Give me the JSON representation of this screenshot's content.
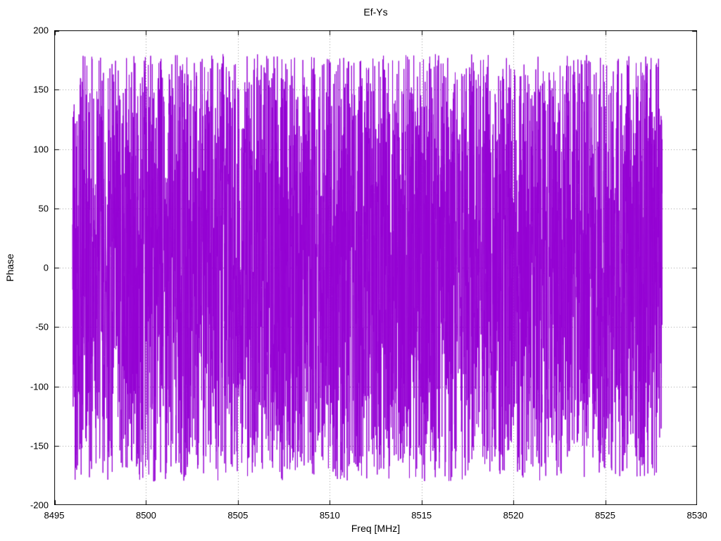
{
  "chart_data": {
    "type": "line",
    "title": "Ef-Ys",
    "xlabel": "Freq [MHz]",
    "ylabel": "Phase",
    "xlim": [
      8495,
      8530
    ],
    "ylim": [
      -200,
      200
    ],
    "x_ticks": [
      8495,
      8500,
      8505,
      8510,
      8515,
      8520,
      8525,
      8530
    ],
    "y_ticks": [
      -200,
      -150,
      -100,
      -50,
      0,
      50,
      100,
      150,
      200
    ],
    "grid": "dotted",
    "legend": "none",
    "series": [
      {
        "name": "Ef-Ys",
        "color": "#9400d3",
        "style": "lines",
        "x_start": 8496.0,
        "x_end": 8528.1,
        "n_points": 4200,
        "y_min": -180,
        "y_max": 180,
        "seed": 42,
        "description": "Wrapped interferometric phase vs frequency; dense noise-like signal uniformly distributed between -180 and +180 degrees across the full band, rendered as connected line segments forming a solid violet band with occasional spikes to the +/-180 limits."
      }
    ]
  }
}
